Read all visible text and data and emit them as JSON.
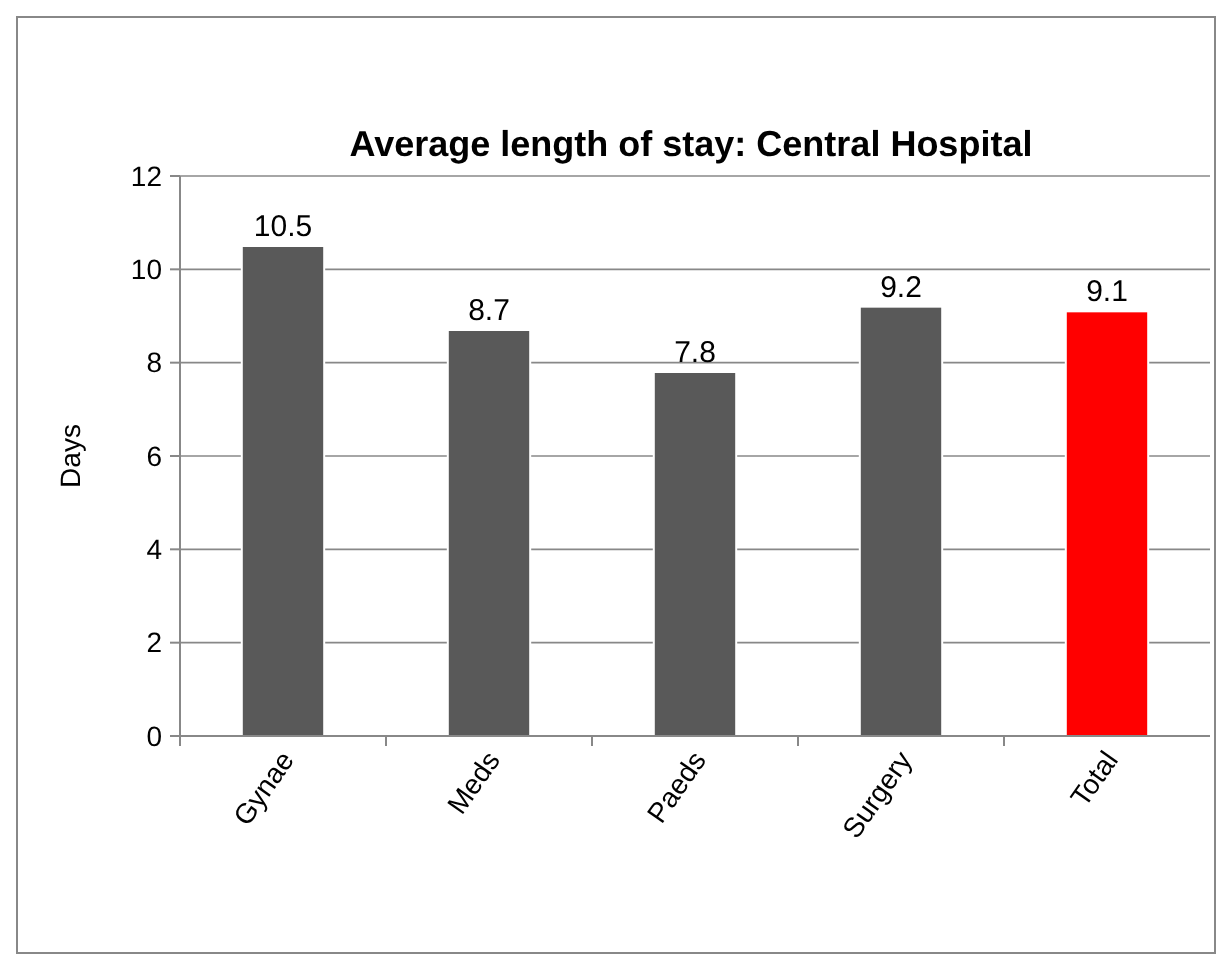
{
  "chart_data": {
    "type": "bar",
    "title": "Average length of stay: Central Hospital",
    "ylabel": "Days",
    "categories": [
      "Gynae",
      "Meds",
      "Paeds",
      "Surgery",
      "Total"
    ],
    "values": [
      10.5,
      8.7,
      7.8,
      9.2,
      9.1
    ],
    "colors": [
      "#595959",
      "#595959",
      "#595959",
      "#595959",
      "#ff0000"
    ],
    "ylim": [
      0,
      12
    ],
    "yticks": [
      0,
      2,
      4,
      6,
      8,
      10,
      12
    ],
    "grid": "y",
    "data_labels": true
  }
}
